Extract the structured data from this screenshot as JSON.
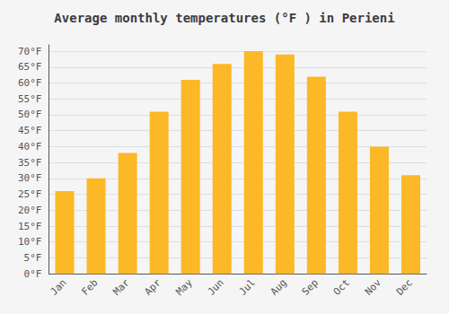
{
  "chart_data": {
    "type": "bar",
    "title": "Average monthly temperatures (°F ) in Perieni",
    "categories": [
      "Jan",
      "Feb",
      "Mar",
      "Apr",
      "May",
      "Jun",
      "Jul",
      "Aug",
      "Sep",
      "Oct",
      "Nov",
      "Dec"
    ],
    "values": [
      26,
      30,
      38,
      51,
      61,
      66,
      70,
      69,
      62,
      51,
      40,
      31
    ],
    "color": "#FDB827",
    "ylim": [
      0,
      72
    ],
    "yticks": [
      {
        "value": 0,
        "label": "0°F"
      },
      {
        "value": 5,
        "label": "5°F"
      },
      {
        "value": 10,
        "label": "10°F"
      },
      {
        "value": 15,
        "label": "15°F"
      },
      {
        "value": 20,
        "label": "20°F"
      },
      {
        "value": 25,
        "label": "25°F"
      },
      {
        "value": 30,
        "label": "30°F"
      },
      {
        "value": 35,
        "label": "35°F"
      },
      {
        "value": 40,
        "label": "40°F"
      },
      {
        "value": 45,
        "label": "45°F"
      },
      {
        "value": 50,
        "label": "50°F"
      },
      {
        "value": 55,
        "label": "55°F"
      },
      {
        "value": 60,
        "label": "60°F"
      },
      {
        "value": 65,
        "label": "65°F"
      },
      {
        "value": 70,
        "label": "70°F"
      }
    ],
    "grid": true
  }
}
